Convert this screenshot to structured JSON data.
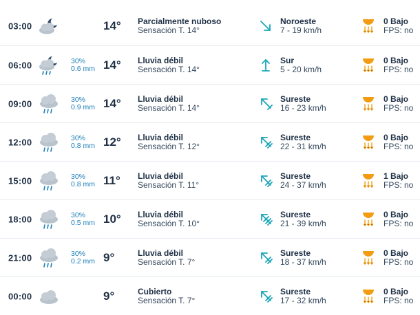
{
  "rows": [
    {
      "time": "03:00",
      "sky_icon": "moon-cloud-icon",
      "prob": "",
      "amount": "",
      "temp": "14°",
      "desc": "Parcialmente nuboso",
      "feel": "Sensación T. 14°",
      "wind_dir": "Noroeste",
      "wind_speed": "7 - 19 km/h",
      "uv": "0 Bajo",
      "fps": "FPS: no"
    },
    {
      "time": "06:00",
      "sky_icon": "moon-cloud-rain-icon",
      "prob": "30%",
      "amount": "0.6 mm",
      "temp": "14°",
      "desc": "Lluvia débil",
      "feel": "Sensación T. 14°",
      "wind_dir": "Sur",
      "wind_speed": "5 - 20 km/h",
      "uv": "0 Bajo",
      "fps": "FPS: no"
    },
    {
      "time": "09:00",
      "sky_icon": "cloud-rain-icon",
      "prob": "30%",
      "amount": "0.9 mm",
      "temp": "14°",
      "desc": "Lluvia débil",
      "feel": "Sensación T. 14°",
      "wind_dir": "Sureste",
      "wind_speed": "16 - 23 km/h",
      "uv": "0 Bajo",
      "fps": "FPS: no"
    },
    {
      "time": "12:00",
      "sky_icon": "cloud-rain-icon",
      "prob": "30%",
      "amount": "0.8 mm",
      "temp": "12°",
      "desc": "Lluvia débil",
      "feel": "Sensación T. 12°",
      "wind_dir": "Sureste",
      "wind_speed": "22 - 31 km/h",
      "uv": "0 Bajo",
      "fps": "FPS: no"
    },
    {
      "time": "15:00",
      "sky_icon": "cloud-rain-icon",
      "prob": "30%",
      "amount": "0.8 mm",
      "temp": "11°",
      "desc": "Lluvia débil",
      "feel": "Sensación T. 11°",
      "wind_dir": "Sureste",
      "wind_speed": "24 - 37 km/h",
      "uv": "1 Bajo",
      "fps": "FPS: no"
    },
    {
      "time": "18:00",
      "sky_icon": "cloud-rain-icon",
      "prob": "30%",
      "amount": "0.5 mm",
      "temp": "10°",
      "desc": "Lluvia débil",
      "feel": "Sensación T. 10°",
      "wind_dir": "Sureste",
      "wind_speed": "21 - 39 km/h",
      "uv": "0 Bajo",
      "fps": "FPS: no"
    },
    {
      "time": "21:00",
      "sky_icon": "cloud-rain-icon",
      "prob": "30%",
      "amount": "0.2 mm",
      "temp": "9°",
      "desc": "Lluvia débil",
      "feel": "Sensación T. 7°",
      "wind_dir": "Sureste",
      "wind_speed": "18 - 37 km/h",
      "uv": "0 Bajo",
      "fps": "FPS: no"
    },
    {
      "time": "00:00",
      "sky_icon": "cloud-icon",
      "prob": "",
      "amount": "",
      "temp": "9°",
      "desc": "Cubierto",
      "feel": "Sensación T. 7°",
      "wind_dir": "Sureste",
      "wind_speed": "17 - 32 km/h",
      "uv": "0 Bajo",
      "fps": "FPS: no"
    }
  ],
  "colors": {
    "text": "#1f3045",
    "precip": "#1d7fb8",
    "wind_arrow": "#1aa6b8",
    "uv_icon": "#f39c12",
    "cloud": "#b9c3cc"
  }
}
